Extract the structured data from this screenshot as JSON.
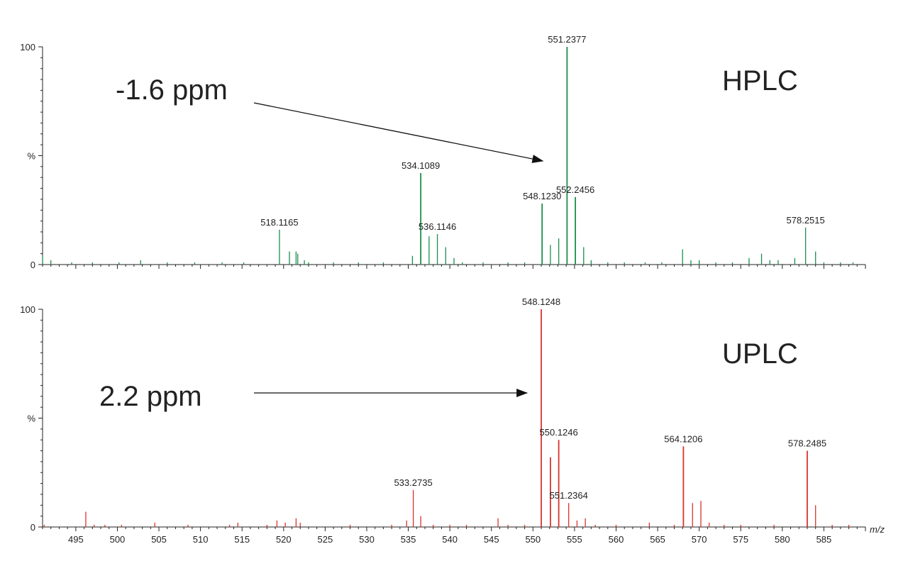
{
  "chart_data": [
    {
      "type": "bar",
      "series": [
        {
          "name": "",
          "color": "#1a8f4c"
        }
      ],
      "y_range": [
        0,
        100
      ],
      "y_ticks": [
        {
          "value": 0,
          "label": "0"
        },
        {
          "value": 50,
          "label": "%"
        },
        {
          "value": 100,
          "label": "100"
        }
      ],
      "peaks": [
        {
          "x": 491.0,
          "y": 4
        },
        {
          "x": 492.0,
          "y": 2
        },
        {
          "x": 494.5,
          "y": 1
        },
        {
          "x": 497.0,
          "y": 1
        },
        {
          "x": 500.2,
          "y": 1
        },
        {
          "x": 502.8,
          "y": 2
        },
        {
          "x": 506.0,
          "y": 1
        },
        {
          "x": 509.3,
          "y": 1
        },
        {
          "x": 512.6,
          "y": 1
        },
        {
          "x": 515.2,
          "y": 1
        },
        {
          "x": 519.5,
          "y": 16,
          "label": "518.1165"
        },
        {
          "x": 520.7,
          "y": 6
        },
        {
          "x": 521.5,
          "y": 6
        },
        {
          "x": 521.7,
          "y": 5
        },
        {
          "x": 522.5,
          "y": 2
        },
        {
          "x": 523.0,
          "y": 1
        },
        {
          "x": 526.0,
          "y": 1
        },
        {
          "x": 529.0,
          "y": 1
        },
        {
          "x": 532.0,
          "y": 1
        },
        {
          "x": 535.5,
          "y": 4
        },
        {
          "x": 536.5,
          "y": 42,
          "label": "534.1089"
        },
        {
          "x": 537.5,
          "y": 13
        },
        {
          "x": 538.5,
          "y": 14,
          "label": "536.1146"
        },
        {
          "x": 539.5,
          "y": 8
        },
        {
          "x": 540.5,
          "y": 3
        },
        {
          "x": 541.5,
          "y": 1
        },
        {
          "x": 544.0,
          "y": 1
        },
        {
          "x": 547.0,
          "y": 1
        },
        {
          "x": 549.0,
          "y": 1
        },
        {
          "x": 551.1,
          "y": 28,
          "label": "548.1230"
        },
        {
          "x": 552.1,
          "y": 9
        },
        {
          "x": 553.1,
          "y": 12
        },
        {
          "x": 554.1,
          "y": 100,
          "label": "551.2377"
        },
        {
          "x": 555.1,
          "y": 31,
          "label": "552.2456"
        },
        {
          "x": 556.1,
          "y": 8
        },
        {
          "x": 557.0,
          "y": 2
        },
        {
          "x": 559.0,
          "y": 1
        },
        {
          "x": 561.0,
          "y": 1
        },
        {
          "x": 563.5,
          "y": 1
        },
        {
          "x": 565.5,
          "y": 1
        },
        {
          "x": 568.0,
          "y": 7
        },
        {
          "x": 569.0,
          "y": 2
        },
        {
          "x": 570.0,
          "y": 2
        },
        {
          "x": 572.0,
          "y": 1
        },
        {
          "x": 574.0,
          "y": 1
        },
        {
          "x": 576.0,
          "y": 3
        },
        {
          "x": 577.5,
          "y": 5
        },
        {
          "x": 578.5,
          "y": 2
        },
        {
          "x": 579.5,
          "y": 2
        },
        {
          "x": 581.5,
          "y": 3
        },
        {
          "x": 582.8,
          "y": 17,
          "label": "578.2515"
        },
        {
          "x": 584.0,
          "y": 6
        },
        {
          "x": 585.0,
          "y": 1
        },
        {
          "x": 587.0,
          "y": 1
        },
        {
          "x": 588.5,
          "y": 1
        }
      ],
      "annotation": "-1.6 ppm",
      "annotation_arrow_to_x": 551.2,
      "method_label": "HPLC"
    },
    {
      "type": "bar",
      "series": [
        {
          "name": "",
          "color": "#d9332e"
        }
      ],
      "y_range": [
        0,
        100
      ],
      "y_ticks": [
        {
          "value": 0,
          "label": "0"
        },
        {
          "value": 50,
          "label": "%"
        },
        {
          "value": 100,
          "label": "100"
        }
      ],
      "x_range": [
        491,
        590
      ],
      "x_ticks": [
        495,
        500,
        505,
        510,
        515,
        520,
        525,
        530,
        535,
        540,
        545,
        550,
        555,
        560,
        565,
        570,
        575,
        580,
        585
      ],
      "xlabel": "m/z",
      "peaks": [
        {
          "x": 491.2,
          "y": 1
        },
        {
          "x": 496.2,
          "y": 7
        },
        {
          "x": 497.2,
          "y": 1
        },
        {
          "x": 498.5,
          "y": 1
        },
        {
          "x": 500.5,
          "y": 1
        },
        {
          "x": 504.5,
          "y": 2
        },
        {
          "x": 508.5,
          "y": 1
        },
        {
          "x": 513.5,
          "y": 1
        },
        {
          "x": 514.5,
          "y": 2
        },
        {
          "x": 518.0,
          "y": 1
        },
        {
          "x": 519.2,
          "y": 3
        },
        {
          "x": 520.2,
          "y": 2
        },
        {
          "x": 521.5,
          "y": 4
        },
        {
          "x": 522.0,
          "y": 2
        },
        {
          "x": 528.0,
          "y": 1
        },
        {
          "x": 533.0,
          "y": 1
        },
        {
          "x": 534.8,
          "y": 3
        },
        {
          "x": 535.6,
          "y": 17,
          "label": "533.2735"
        },
        {
          "x": 536.5,
          "y": 5
        },
        {
          "x": 538.0,
          "y": 1
        },
        {
          "x": 540.0,
          "y": 1
        },
        {
          "x": 542.0,
          "y": 1
        },
        {
          "x": 545.8,
          "y": 4
        },
        {
          "x": 547.0,
          "y": 1
        },
        {
          "x": 549.0,
          "y": 1
        },
        {
          "x": 551.0,
          "y": 100,
          "label": "548.1248"
        },
        {
          "x": 552.1,
          "y": 32
        },
        {
          "x": 553.1,
          "y": 40,
          "label": "550.1246"
        },
        {
          "x": 554.3,
          "y": 11,
          "label": "551.2364"
        },
        {
          "x": 555.3,
          "y": 3
        },
        {
          "x": 556.3,
          "y": 4
        },
        {
          "x": 557.5,
          "y": 1
        },
        {
          "x": 560.0,
          "y": 1
        },
        {
          "x": 564.0,
          "y": 2
        },
        {
          "x": 567.0,
          "y": 1
        },
        {
          "x": 568.1,
          "y": 37,
          "label": "564.1206"
        },
        {
          "x": 569.2,
          "y": 11
        },
        {
          "x": 570.2,
          "y": 12
        },
        {
          "x": 571.2,
          "y": 2
        },
        {
          "x": 573.0,
          "y": 1
        },
        {
          "x": 575.0,
          "y": 1
        },
        {
          "x": 579.0,
          "y": 1
        },
        {
          "x": 583.0,
          "y": 35,
          "label": "578.2485"
        },
        {
          "x": 584.0,
          "y": 10
        },
        {
          "x": 586.0,
          "y": 1
        },
        {
          "x": 588.0,
          "y": 1
        }
      ],
      "annotation": "2.2 ppm",
      "annotation_arrow_to_x": 549.3,
      "method_label": "UPLC"
    }
  ]
}
